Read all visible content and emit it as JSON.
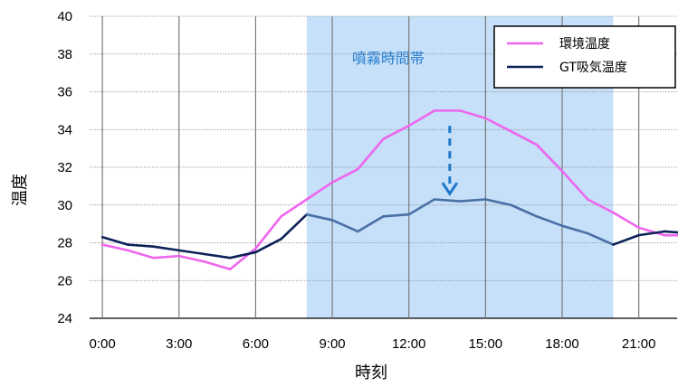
{
  "chart_data": {
    "type": "line",
    "title": "",
    "xlabel": "時刻",
    "ylabel": "温度",
    "ylim": [
      24,
      40
    ],
    "y_ticks": [
      "24",
      "26",
      "28",
      "30",
      "32",
      "34",
      "36",
      "38",
      "40"
    ],
    "xlim": [
      -0.5,
      22.5
    ],
    "x_ticks": [
      {
        "hour": 0,
        "label": "0:00"
      },
      {
        "hour": 3,
        "label": "3:00"
      },
      {
        "hour": 6,
        "label": "6:00"
      },
      {
        "hour": 9,
        "label": "9:00"
      },
      {
        "hour": 12,
        "label": "12:00"
      },
      {
        "hour": 15,
        "label": "15:00"
      },
      {
        "hour": 18,
        "label": "18:00"
      },
      {
        "hour": 21,
        "label": "21:00"
      }
    ],
    "grid": true,
    "legend_position": "top-right",
    "highlight_band": {
      "label": "噴霧時間帯",
      "x_start": 8.0,
      "x_end": 20.0,
      "color": "#c5e0f8"
    },
    "annotation": {
      "type": "dashed-arrow",
      "x": 13.6,
      "y_from": 34.2,
      "y_to": 30.6,
      "color": "#1f77c9"
    },
    "series": [
      {
        "name": "環境温度",
        "color": "#ee66ee",
        "x": [
          0,
          1,
          2,
          3,
          4,
          5,
          6,
          7,
          8,
          9,
          10,
          11,
          12,
          13,
          14,
          15,
          16,
          17,
          18,
          19,
          20,
          21,
          22,
          23
        ],
        "values": [
          27.9,
          27.6,
          27.2,
          27.3,
          27.0,
          26.6,
          27.7,
          29.4,
          30.3,
          31.2,
          31.9,
          33.5,
          34.2,
          35.0,
          35.0,
          34.6,
          33.9,
          33.2,
          31.8,
          30.3,
          29.6,
          28.8,
          28.4,
          28.4
        ]
      },
      {
        "name": "GT吸気温度",
        "color": "#0d2259",
        "color_in_band": "#4a6fa6",
        "x": [
          0,
          1,
          2,
          3,
          4,
          5,
          6,
          7,
          8,
          9,
          10,
          11,
          12,
          13,
          14,
          15,
          16,
          17,
          18,
          19,
          20,
          21,
          22,
          23
        ],
        "values": [
          28.3,
          27.9,
          27.8,
          27.6,
          27.4,
          27.2,
          27.5,
          28.2,
          29.5,
          29.2,
          28.6,
          29.4,
          29.5,
          30.3,
          30.2,
          30.3,
          30.0,
          29.4,
          28.9,
          28.5,
          27.9,
          28.4,
          28.6,
          28.5
        ]
      }
    ]
  }
}
